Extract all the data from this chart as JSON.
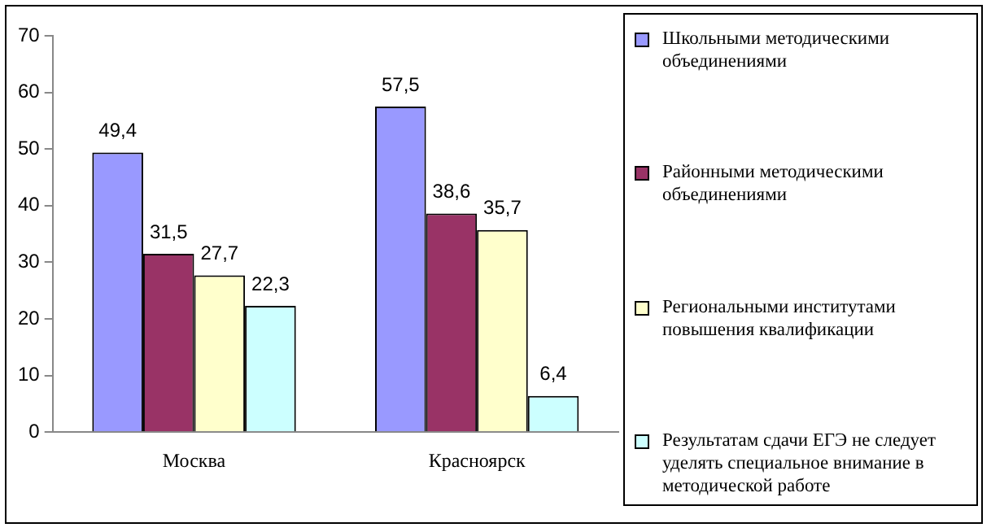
{
  "chart_data": {
    "type": "bar",
    "categories": [
      "Москва",
      "Красноярск"
    ],
    "series": [
      {
        "name": "Школьными методическими объединениями",
        "color": "#9999ff",
        "values": [
          49.4,
          57.5
        ],
        "value_labels": [
          "49,4",
          "57,5"
        ]
      },
      {
        "name": "Районными методическими объединениями",
        "color": "#993366",
        "values": [
          31.5,
          38.6
        ],
        "value_labels": [
          "31,5",
          "38,6"
        ]
      },
      {
        "name": "Региональными институтами повышения квалификации",
        "color": "#ffffcc",
        "values": [
          27.7,
          35.7
        ],
        "value_labels": [
          "27,7",
          "35,7"
        ]
      },
      {
        "name": "Результатам сдачи ЕГЭ не следует уделять специальное внимание в методической работе",
        "color": "#ccffff",
        "values": [
          22.3,
          6.4
        ],
        "value_labels": [
          "22,3",
          "6,4"
        ]
      }
    ],
    "ylim": [
      0,
      70
    ],
    "yticks": [
      0,
      10,
      20,
      30,
      40,
      50,
      60,
      70
    ],
    "grid": false,
    "legend": "right"
  }
}
